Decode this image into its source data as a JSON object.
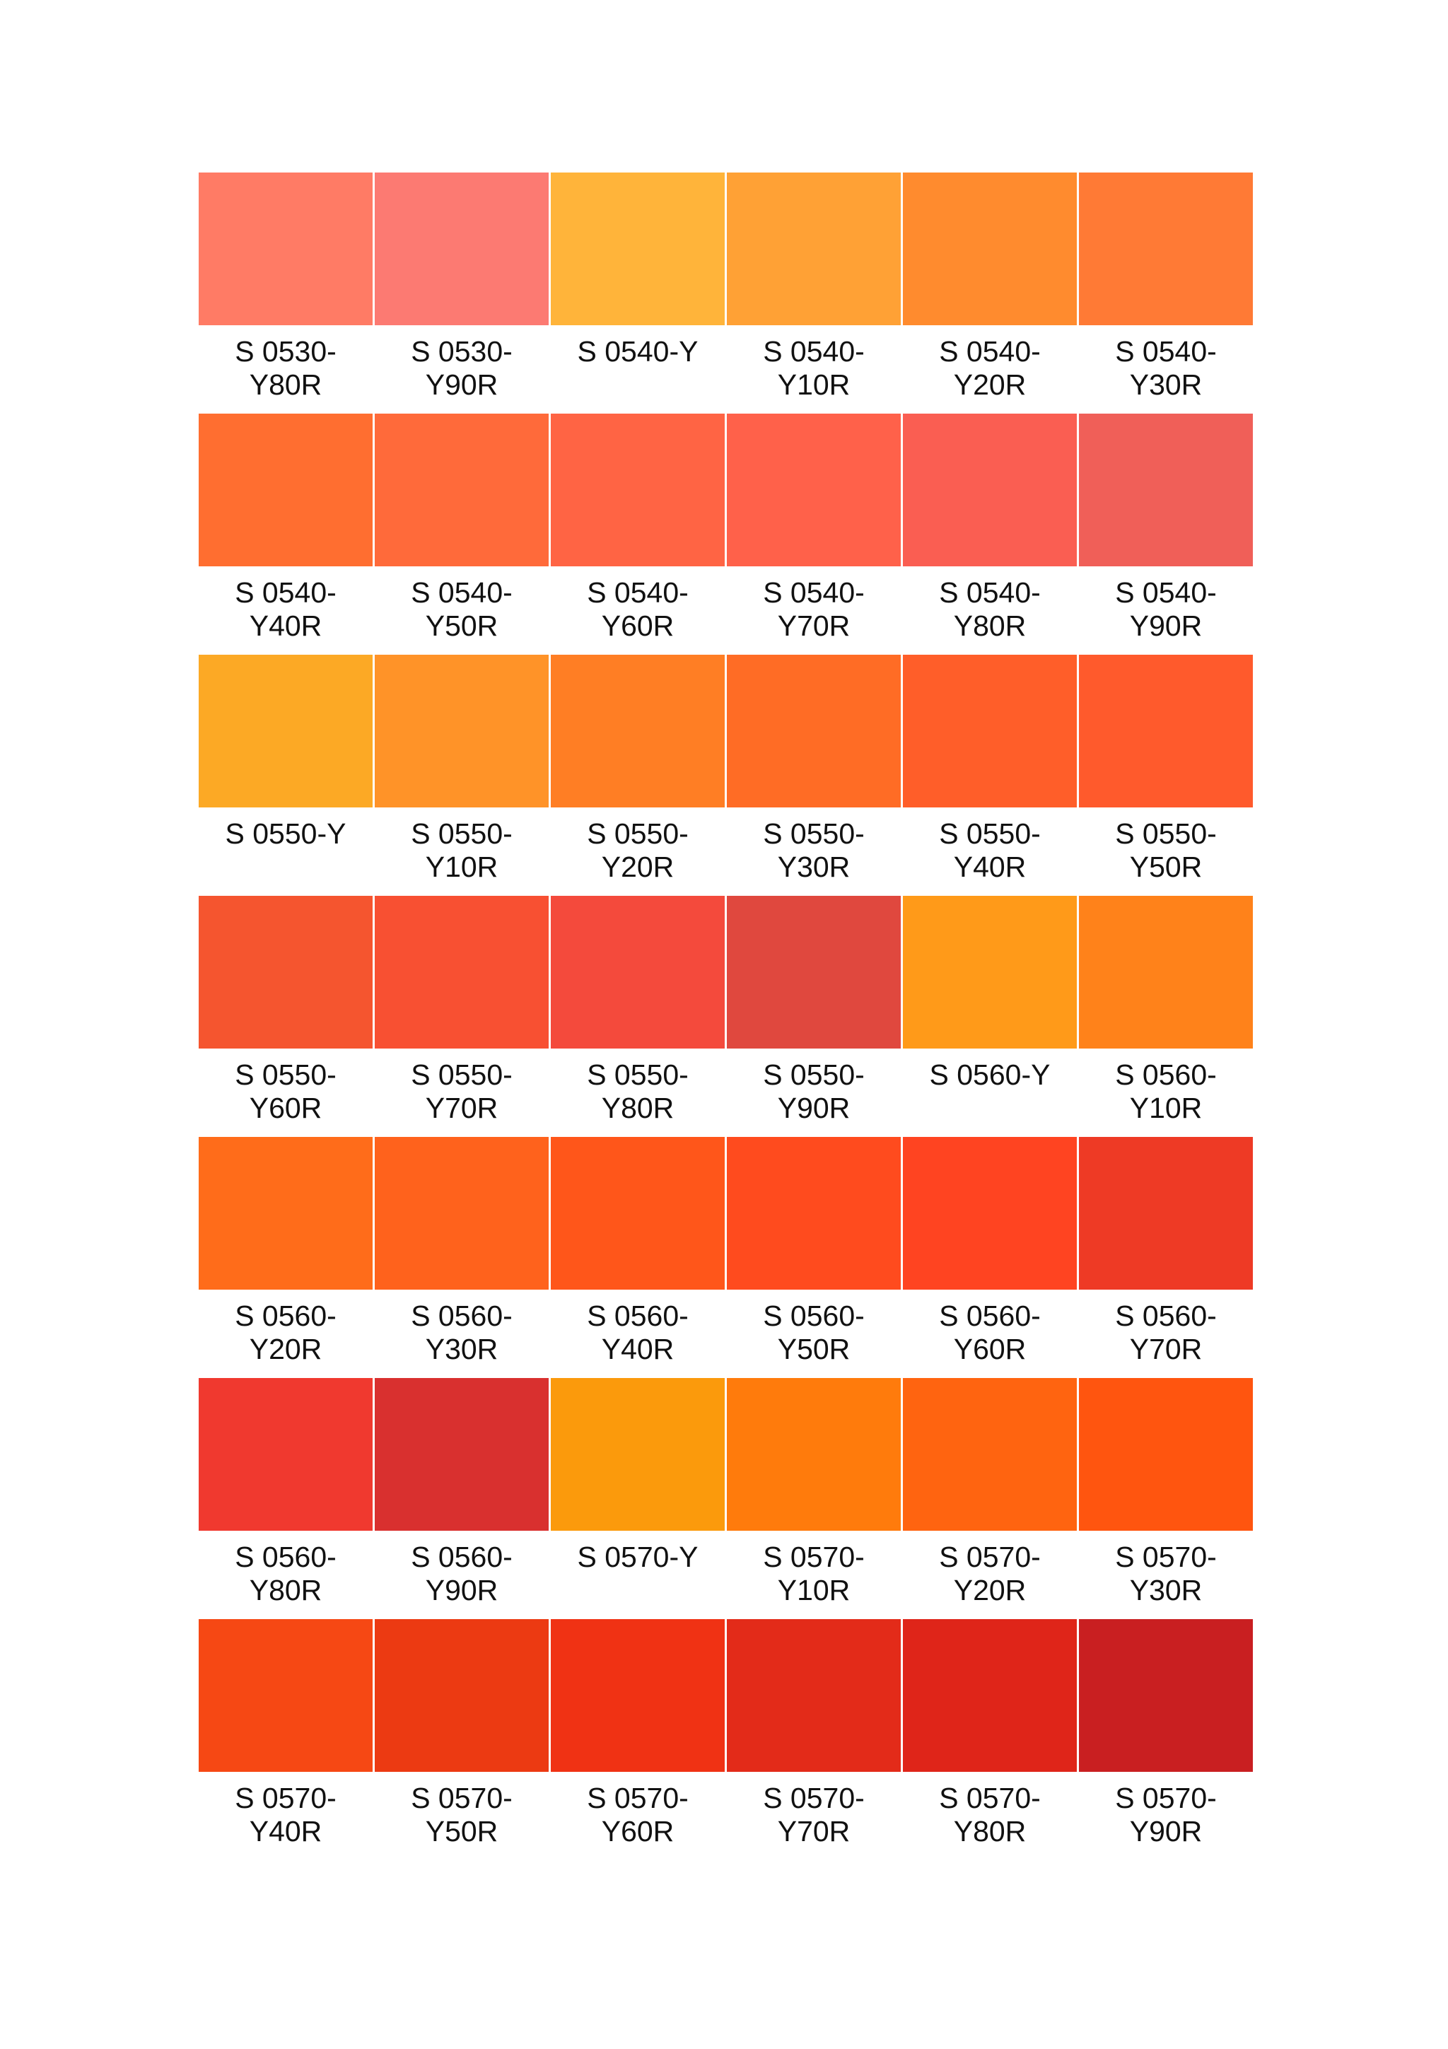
{
  "swatches": [
    {
      "label": "S 0530-Y80R",
      "color": "#FF7B65"
    },
    {
      "label": "S 0530-Y90R",
      "color": "#FC7A72"
    },
    {
      "label": "S 0540-Y",
      "color": "#FFB43A"
    },
    {
      "label": "S 0540-Y10R",
      "color": "#FFA135"
    },
    {
      "label": "S 0540-Y20R",
      "color": "#FF8B2E"
    },
    {
      "label": "S 0540-Y30R",
      "color": "#FF7A35"
    },
    {
      "label": "S 0540-Y40R",
      "color": "#FF6E30"
    },
    {
      "label": "S 0540-Y50R",
      "color": "#FF6A3A"
    },
    {
      "label": "S 0540-Y60R",
      "color": "#FF6444"
    },
    {
      "label": "S 0540-Y70R",
      "color": "#FF614A"
    },
    {
      "label": "S 0540-Y80R",
      "color": "#FA5E52"
    },
    {
      "label": "S 0540-Y90R",
      "color": "#F05F58"
    },
    {
      "label": "S 0550-Y",
      "color": "#FCA925"
    },
    {
      "label": "S 0550-Y10R",
      "color": "#FF9328"
    },
    {
      "label": "S 0550-Y20R",
      "color": "#FF7E24"
    },
    {
      "label": "S 0550-Y30R",
      "color": "#FF6C25"
    },
    {
      "label": "S 0550-Y40R",
      "color": "#FF5E29"
    },
    {
      "label": "S 0550-Y50R",
      "color": "#FF5A2C"
    },
    {
      "label": "S 0550-Y60R",
      "color": "#F5552F"
    },
    {
      "label": "S 0550-Y70R",
      "color": "#F85032"
    },
    {
      "label": "S 0550-Y80R",
      "color": "#F44A3C"
    },
    {
      "label": "S 0550-Y90R",
      "color": "#E0483E"
    },
    {
      "label": "S 0560-Y",
      "color": "#FF9A19"
    },
    {
      "label": "S 0560-Y10R",
      "color": "#FF821A"
    },
    {
      "label": "S 0560-Y20R",
      "color": "#FF6C1A"
    },
    {
      "label": "S 0560-Y30R",
      "color": "#FF621C"
    },
    {
      "label": "S 0560-Y40R",
      "color": "#FF561A"
    },
    {
      "label": "S 0560-Y50R",
      "color": "#FF4B1E"
    },
    {
      "label": "S 0560-Y60R",
      "color": "#FF4421"
    },
    {
      "label": "S 0560-Y70R",
      "color": "#EE3A25"
    },
    {
      "label": "S 0560-Y80R",
      "color": "#F0392F"
    },
    {
      "label": "S 0560-Y90R",
      "color": "#D9302F"
    },
    {
      "label": "S 0570-Y",
      "color": "#FB9A0C"
    },
    {
      "label": "S 0570-Y10R",
      "color": "#FF7B0C"
    },
    {
      "label": "S 0570-Y20R",
      "color": "#FF6410"
    },
    {
      "label": "S 0570-Y30R",
      "color": "#FF550F"
    },
    {
      "label": "S 0570-Y40R",
      "color": "#F64814"
    },
    {
      "label": "S 0570-Y50R",
      "color": "#EC3A12"
    },
    {
      "label": "S 0570-Y60R",
      "color": "#F03214"
    },
    {
      "label": "S 0570-Y70R",
      "color": "#E32B19"
    },
    {
      "label": "S 0570-Y80R",
      "color": "#DF2519"
    },
    {
      "label": "S 0570-Y90R",
      "color": "#C91F21"
    }
  ]
}
